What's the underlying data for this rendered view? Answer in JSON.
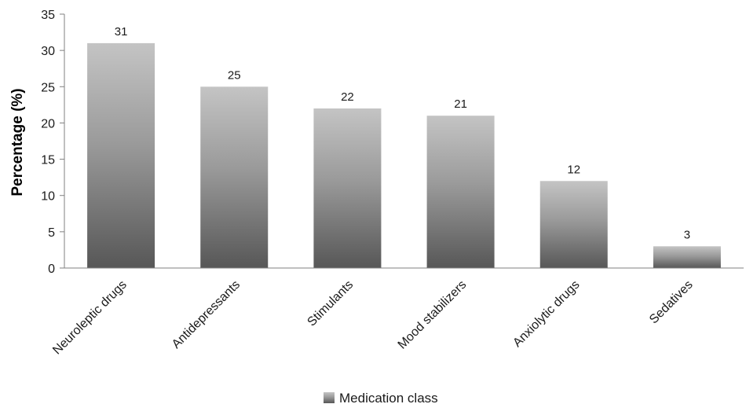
{
  "chart_data": {
    "type": "bar",
    "categories": [
      "Neuroleptic drugs",
      "Antidepressants",
      "Stimulants",
      "Mood stabilizers",
      "Anxiolytic drugs",
      "Sedatives"
    ],
    "series": [
      {
        "name": "Medication class",
        "values": [
          31,
          25,
          22,
          21,
          12,
          3
        ]
      }
    ],
    "data_labels": [
      "31",
      "25",
      "22",
      "21",
      "12",
      "3"
    ],
    "title": "",
    "xlabel": "",
    "ylabel": "Percentage (%)",
    "ylim": [
      0,
      35
    ],
    "y_ticks": [
      0,
      5,
      10,
      15,
      20,
      25,
      30,
      35
    ],
    "grid": false,
    "legend_position": "bottom-center",
    "colors": {
      "bar_top": "#c4c4c4",
      "bar_bottom": "#575757",
      "axis": "#808080",
      "text": "#1a1a1a"
    }
  }
}
